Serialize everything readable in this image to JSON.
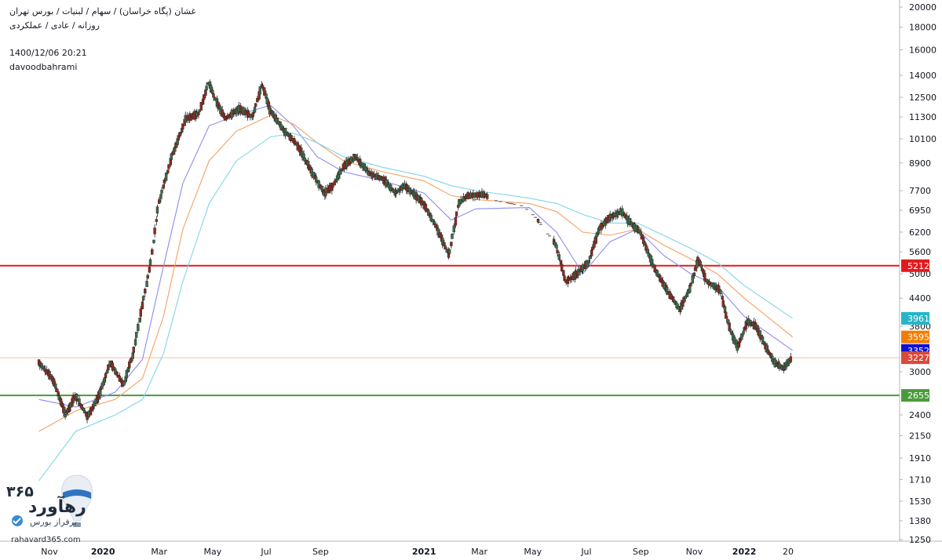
{
  "header": {
    "symbol_line": "غشان (پگاه خراسان) / سهام / لبنیات / بورس تهران",
    "interval_line": "روزانه / عادی / عملکردی",
    "timestamp": "1400/12/06 20:21",
    "author": "davoodbahrami"
  },
  "logo": {
    "number_text": "۳۶۵",
    "brand_text": "رهآورد",
    "tagline": "برفراز بورس",
    "site": "rahavard365.com"
  },
  "colors": {
    "up_candle": "#3e6b4a",
    "down_candle": "#8a2e22",
    "ma_short": "#8c8cf0",
    "ma_mid": "#f5a064",
    "ma_long": "#7fd6e8",
    "resistance_line": "#e31a1c",
    "support_line": "#4a9a3c",
    "last_price_line": "#f3c2a8"
  },
  "chart_data": {
    "type": "candlestick",
    "y_axis": {
      "scale": "log",
      "range": [
        1250,
        20000
      ],
      "ticks": [
        "20000",
        "18000",
        "16000",
        "14000",
        "12500",
        "11300",
        "10100",
        "8900",
        "7700",
        "6950",
        "6200",
        "5600",
        "5000",
        "4400",
        "3800",
        "3000",
        "2400",
        "2150",
        "1910",
        "1710",
        "1530",
        "1380",
        "1250"
      ]
    },
    "x_axis": {
      "ticks": [
        "Nov",
        "2020",
        "Mar",
        "May",
        "Jul",
        "Sep",
        "2021",
        "Mar",
        "May",
        "Jul",
        "Sep",
        "Nov",
        "2022",
        "20"
      ]
    },
    "horizontal_lines": [
      {
        "value": 5212,
        "color": "#e31a1c"
      },
      {
        "value": 2655,
        "color": "#4a9a3c"
      }
    ],
    "price_badges": [
      {
        "label": "5212",
        "color": "#e31a1c"
      },
      {
        "label": "3961",
        "color": "#26b5c8"
      },
      {
        "label": "3595",
        "color": "#f57c00"
      },
      {
        "label": "3352",
        "color": "#1010d0"
      },
      {
        "label": "3227",
        "color": "#d94a3a"
      },
      {
        "label": "2655",
        "color": "#4a9a3c"
      }
    ],
    "price_path": [
      [
        "2019-10-20",
        3150
      ],
      [
        "2019-11-05",
        2900
      ],
      [
        "2019-11-20",
        2400
      ],
      [
        "2019-12-01",
        2650
      ],
      [
        "2019-12-15",
        2380
      ],
      [
        "2019-12-28",
        2650
      ],
      [
        "2020-01-10",
        3150
      ],
      [
        "2020-01-25",
        2800
      ],
      [
        "2020-02-05",
        3300
      ],
      [
        "2020-02-15",
        4200
      ],
      [
        "2020-02-25",
        5300
      ],
      [
        "2020-03-05",
        7200
      ],
      [
        "2020-03-20",
        9200
      ],
      [
        "2020-04-05",
        11200
      ],
      [
        "2020-04-20",
        11500
      ],
      [
        "2020-05-01",
        13500
      ],
      [
        "2020-05-10",
        12200
      ],
      [
        "2020-05-20",
        11200
      ],
      [
        "2020-06-05",
        11800
      ],
      [
        "2020-06-20",
        11300
      ],
      [
        "2020-07-01",
        13400
      ],
      [
        "2020-07-10",
        11700
      ],
      [
        "2020-07-25",
        10600
      ],
      [
        "2020-08-10",
        9800
      ],
      [
        "2020-08-25",
        8600
      ],
      [
        "2020-09-10",
        7600
      ],
      [
        "2020-09-20",
        7900
      ],
      [
        "2020-10-01",
        8700
      ],
      [
        "2020-10-15",
        9200
      ],
      [
        "2020-11-01",
        8400
      ],
      [
        "2020-11-15",
        8200
      ],
      [
        "2020-11-30",
        7600
      ],
      [
        "2020-12-10",
        7900
      ],
      [
        "2020-12-20",
        7600
      ],
      [
        "2021-01-01",
        7200
      ],
      [
        "2021-01-15",
        6400
      ],
      [
        "2021-01-30",
        5500
      ],
      [
        "2021-02-10",
        7200
      ],
      [
        "2021-02-20",
        7500
      ],
      [
        "2021-03-10",
        7550
      ],
      [
        "2021-03-25",
        7300
      ],
      [
        "2021-04-10",
        7200
      ],
      [
        "2021-04-25",
        7100
      ],
      [
        "2021-05-10",
        6650
      ],
      [
        "2021-06-01",
        5800
      ],
      [
        "2021-06-12",
        4800
      ],
      [
        "2021-06-25",
        5000
      ],
      [
        "2021-07-08",
        5300
      ],
      [
        "2021-07-20",
        6300
      ],
      [
        "2021-08-01",
        6700
      ],
      [
        "2021-08-15",
        6900
      ],
      [
        "2021-08-25",
        6500
      ],
      [
        "2021-09-05",
        6200
      ],
      [
        "2021-09-20",
        5200
      ],
      [
        "2021-10-05",
        4600
      ],
      [
        "2021-10-20",
        4150
      ],
      [
        "2021-11-01",
        4650
      ],
      [
        "2021-11-10",
        5400
      ],
      [
        "2021-11-20",
        4800
      ],
      [
        "2021-12-05",
        4600
      ],
      [
        "2021-12-15",
        3800
      ],
      [
        "2021-12-25",
        3400
      ],
      [
        "2022-01-05",
        3900
      ],
      [
        "2022-01-15",
        3800
      ],
      [
        "2022-01-25",
        3450
      ],
      [
        "2022-02-05",
        3150
      ],
      [
        "2022-02-15",
        3050
      ],
      [
        "2022-02-25",
        3227
      ]
    ],
    "gaps": [
      [
        "2021-03-15",
        "2021-05-10"
      ],
      [
        "2021-05-12",
        "2021-05-28"
      ]
    ],
    "moving_averages": [
      {
        "color": "#8c8cf0",
        "points": [
          [
            "2019-10-20",
            2600
          ],
          [
            "2019-12-01",
            2500
          ],
          [
            "2020-01-15",
            2700
          ],
          [
            "2020-02-15",
            3200
          ],
          [
            "2020-03-10",
            5200
          ],
          [
            "2020-04-01",
            8000
          ],
          [
            "2020-05-01",
            10800
          ],
          [
            "2020-06-01",
            11400
          ],
          [
            "2020-07-10",
            12000
          ],
          [
            "2020-08-05",
            10800
          ],
          [
            "2020-09-01",
            9200
          ],
          [
            "2020-10-01",
            8500
          ],
          [
            "2020-11-15",
            8100
          ],
          [
            "2021-01-01",
            7600
          ],
          [
            "2021-02-01",
            6600
          ],
          [
            "2021-03-01",
            7000
          ],
          [
            "2021-05-01",
            7050
          ],
          [
            "2021-06-01",
            6200
          ],
          [
            "2021-07-01",
            5000
          ],
          [
            "2021-08-01",
            5900
          ],
          [
            "2021-09-01",
            6300
          ],
          [
            "2021-10-01",
            5500
          ],
          [
            "2021-11-01",
            5000
          ],
          [
            "2021-12-01",
            4700
          ],
          [
            "2022-01-01",
            4000
          ],
          [
            "2022-02-25",
            3352
          ]
        ]
      },
      {
        "color": "#f5a064",
        "points": [
          [
            "2019-10-20",
            2200
          ],
          [
            "2019-12-01",
            2450
          ],
          [
            "2020-01-15",
            2600
          ],
          [
            "2020-02-15",
            2900
          ],
          [
            "2020-03-10",
            4000
          ],
          [
            "2020-04-01",
            6300
          ],
          [
            "2020-05-01",
            9000
          ],
          [
            "2020-06-01",
            10500
          ],
          [
            "2020-07-10",
            11400
          ],
          [
            "2020-08-05",
            10900
          ],
          [
            "2020-09-01",
            9900
          ],
          [
            "2020-10-01",
            9000
          ],
          [
            "2020-11-15",
            8500
          ],
          [
            "2021-01-01",
            8100
          ],
          [
            "2021-02-01",
            7500
          ],
          [
            "2021-03-01",
            7350
          ],
          [
            "2021-05-01",
            7200
          ],
          [
            "2021-06-01",
            6900
          ],
          [
            "2021-07-01",
            6200
          ],
          [
            "2021-08-01",
            6100
          ],
          [
            "2021-09-01",
            6300
          ],
          [
            "2021-10-01",
            5800
          ],
          [
            "2021-11-01",
            5400
          ],
          [
            "2021-12-01",
            5000
          ],
          [
            "2022-01-01",
            4400
          ],
          [
            "2022-02-25",
            3595
          ]
        ]
      },
      {
        "color": "#7fd6e8",
        "points": [
          [
            "2019-10-20",
            1700
          ],
          [
            "2019-12-01",
            2200
          ],
          [
            "2020-01-15",
            2400
          ],
          [
            "2020-02-15",
            2600
          ],
          [
            "2020-03-10",
            3300
          ],
          [
            "2020-04-01",
            4800
          ],
          [
            "2020-05-01",
            7200
          ],
          [
            "2020-06-01",
            9000
          ],
          [
            "2020-07-10",
            10200
          ],
          [
            "2020-08-05",
            10400
          ],
          [
            "2020-09-01",
            9900
          ],
          [
            "2020-10-01",
            9200
          ],
          [
            "2020-11-15",
            8700
          ],
          [
            "2021-01-01",
            8300
          ],
          [
            "2021-02-01",
            7900
          ],
          [
            "2021-03-01",
            7700
          ],
          [
            "2021-05-01",
            7400
          ],
          [
            "2021-06-01",
            7200
          ],
          [
            "2021-07-01",
            6800
          ],
          [
            "2021-08-01",
            6500
          ],
          [
            "2021-09-01",
            6500
          ],
          [
            "2021-10-01",
            6100
          ],
          [
            "2021-11-01",
            5700
          ],
          [
            "2021-12-01",
            5300
          ],
          [
            "2022-01-01",
            4700
          ],
          [
            "2022-02-25",
            3961
          ]
        ]
      }
    ]
  }
}
